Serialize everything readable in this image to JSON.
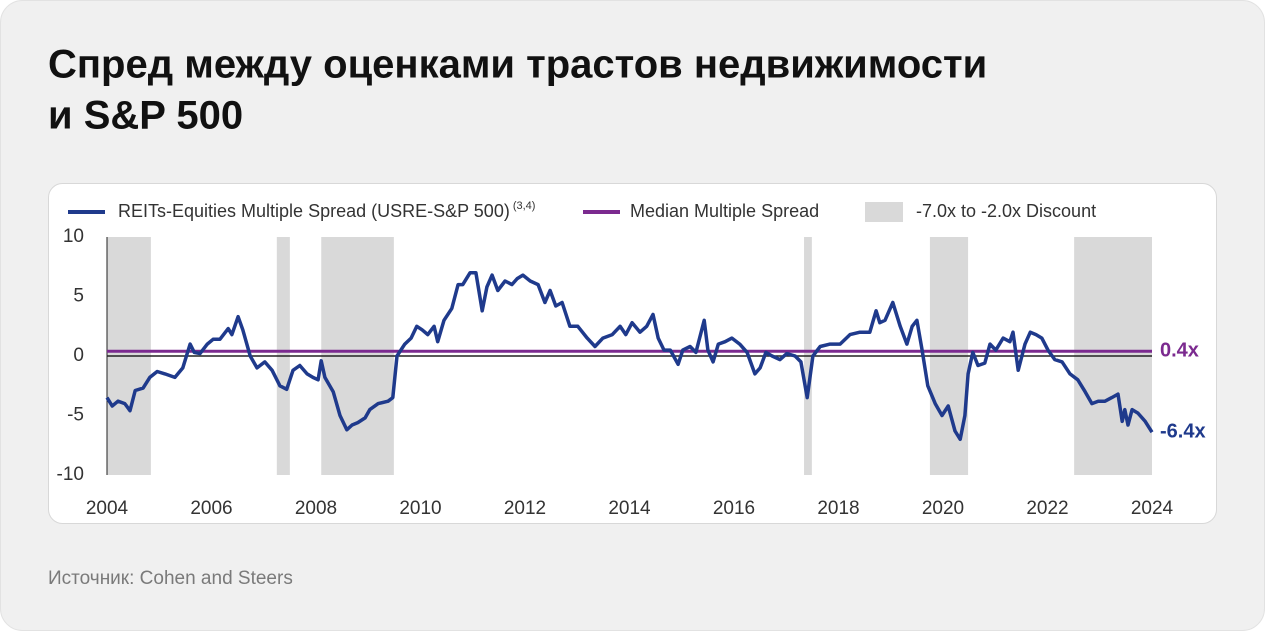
{
  "chart_data": {
    "type": "line",
    "title": [
      "Спред между оценками трастов недвижимости",
      "и S&P 500"
    ],
    "source": "Источник: Cohen and Steers",
    "x": [
      2004.0,
      2004.1,
      2004.21,
      2004.34,
      2004.44,
      2004.54,
      2004.69,
      2004.82,
      2004.96,
      2005.11,
      2005.3,
      2005.45,
      2005.59,
      2005.67,
      2005.78,
      2005.92,
      2006.03,
      2006.16,
      2006.32,
      2006.39,
      2006.51,
      2006.6,
      2006.74,
      2006.87,
      2007.02,
      2007.16,
      2007.31,
      2007.44,
      2007.56,
      2007.69,
      2007.83,
      2007.94,
      2008.04,
      2008.1,
      2008.17,
      2008.33,
      2008.46,
      2008.59,
      2008.69,
      2008.8,
      2008.94,
      2009.03,
      2009.19,
      2009.38,
      2009.47,
      2009.55,
      2009.7,
      2009.82,
      2009.93,
      2010.03,
      2010.14,
      2010.26,
      2010.33,
      2010.45,
      2010.6,
      2010.72,
      2010.81,
      2010.95,
      2011.06,
      2011.18,
      2011.27,
      2011.37,
      2011.48,
      2011.62,
      2011.75,
      2011.85,
      2011.96,
      2012.1,
      2012.25,
      2012.38,
      2012.48,
      2012.59,
      2012.71,
      2012.86,
      2013.01,
      2013.19,
      2013.34,
      2013.49,
      2013.67,
      2013.82,
      2013.93,
      2014.05,
      2014.2,
      2014.33,
      2014.45,
      2014.55,
      2014.66,
      2014.78,
      2014.93,
      2015.02,
      2015.16,
      2015.27,
      2015.43,
      2015.5,
      2015.6,
      2015.7,
      2015.83,
      2015.96,
      2016.11,
      2016.25,
      2016.4,
      2016.5,
      2016.61,
      2016.73,
      2016.88,
      2017.01,
      2017.17,
      2017.28,
      2017.4,
      2017.51,
      2017.65,
      2017.84,
      2018.03,
      2018.22,
      2018.41,
      2018.6,
      2018.72,
      2018.79,
      2018.89,
      2019.04,
      2019.18,
      2019.31,
      2019.41,
      2019.5,
      2019.6,
      2019.71,
      2019.85,
      2019.98,
      2020.1,
      2020.23,
      2020.33,
      2020.42,
      2020.48,
      2020.57,
      2020.67,
      2020.8,
      2020.9,
      2021.01,
      2021.15,
      2021.28,
      2021.34,
      2021.44,
      2021.57,
      2021.67,
      2021.78,
      2021.89,
      2022.01,
      2022.14,
      2022.28,
      2022.43,
      2022.58,
      2022.72,
      2022.85,
      2022.97,
      2023.1,
      2023.23,
      2023.35,
      2023.43,
      2023.48,
      2023.54,
      2023.62,
      2023.73,
      2023.87,
      2024.0
    ],
    "series": [
      {
        "name": "REITs-Equities Multiple Spread (USRE-S&P 500)",
        "name_note": "(3,4)",
        "color": "#1f3a8c",
        "values": [
          -3.5,
          -4.2,
          -3.8,
          -4.0,
          -4.6,
          -2.9,
          -2.7,
          -1.8,
          -1.3,
          -1.5,
          -1.8,
          -1.0,
          1.0,
          0.3,
          0.2,
          1.0,
          1.4,
          1.4,
          2.3,
          1.8,
          3.3,
          2.2,
          0.0,
          -1.0,
          -0.5,
          -1.2,
          -2.5,
          -2.8,
          -1.2,
          -0.8,
          -1.5,
          -1.8,
          -2.0,
          -0.4,
          -1.8,
          -3.0,
          -5.0,
          -6.2,
          -5.8,
          -5.6,
          -5.2,
          -4.5,
          -4.0,
          -3.8,
          -3.5,
          0.0,
          1.0,
          1.5,
          2.5,
          2.2,
          1.8,
          2.5,
          1.2,
          3.0,
          4.0,
          6.0,
          6.0,
          7.0,
          7.0,
          3.8,
          5.8,
          6.8,
          5.5,
          6.3,
          6.0,
          6.5,
          6.8,
          6.3,
          6.0,
          4.5,
          5.5,
          4.2,
          4.5,
          2.5,
          2.5,
          1.5,
          0.8,
          1.5,
          1.8,
          2.5,
          1.8,
          2.8,
          2.0,
          2.5,
          3.5,
          1.5,
          0.5,
          0.5,
          -0.7,
          0.5,
          0.8,
          0.3,
          3.0,
          0.5,
          -0.5,
          1.0,
          1.2,
          1.5,
          1.0,
          0.3,
          -1.5,
          -1.0,
          0.3,
          0.0,
          -0.3,
          0.2,
          0.0,
          -0.5,
          -3.5,
          0.0,
          0.8,
          1.0,
          1.0,
          1.8,
          2.0,
          2.0,
          3.8,
          2.8,
          3.0,
          4.5,
          2.5,
          1.0,
          2.5,
          3.0,
          0.5,
          -2.5,
          -4.0,
          -5.0,
          -4.2,
          -6.3,
          -7.0,
          -5.0,
          -1.5,
          0.3,
          -0.8,
          -0.6,
          1.0,
          0.5,
          1.5,
          1.2,
          2.0,
          -1.2,
          1.0,
          2.0,
          1.8,
          1.5,
          0.5,
          -0.3,
          -0.5,
          -1.5,
          -2.0,
          -3.0,
          -4.0,
          -3.8,
          -3.8,
          -3.5,
          -3.2,
          -5.5,
          -4.5,
          -5.8,
          -4.5,
          -4.8,
          -5.5,
          -6.4
        ]
      },
      {
        "name": "Median Multiple Spread",
        "color": "#7b2a8f",
        "value": 0.4
      }
    ],
    "bands": {
      "name": "-7.0x to -2.0x Discount",
      "color": "#d9d9d9",
      "ranges": [
        [
          2004.0,
          2004.84
        ],
        [
          2007.25,
          2007.5
        ],
        [
          2008.1,
          2009.49
        ],
        [
          2017.34,
          2017.49
        ],
        [
          2019.75,
          2020.48
        ],
        [
          2022.51,
          2024.0
        ]
      ]
    },
    "annotations": [
      {
        "value": 0.4,
        "label": "0.4x",
        "color": "#7b2a8f"
      },
      {
        "value": -6.4,
        "label": "-6.4x",
        "color": "#1f3a8c"
      }
    ],
    "xlim": [
      2004,
      2024
    ],
    "xticks": [
      2004,
      2006,
      2008,
      2010,
      2012,
      2014,
      2016,
      2018,
      2020,
      2022,
      2024
    ],
    "ylim": [
      -10,
      10
    ],
    "yticks": [
      -10,
      -5,
      0,
      5,
      10
    ],
    "zero_line": true,
    "grid": false
  }
}
